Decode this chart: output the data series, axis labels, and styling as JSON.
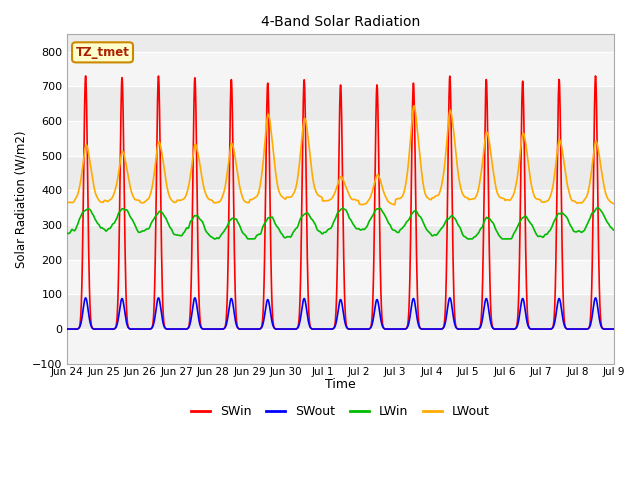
{
  "title": "4-Band Solar Radiation",
  "xlabel": "Time",
  "ylabel": "Solar Radiation (W/m2)",
  "ylim": [
    -100,
    850
  ],
  "yticks": [
    -100,
    0,
    100,
    200,
    300,
    400,
    500,
    600,
    700,
    800
  ],
  "xtick_labels": [
    "Jun 24",
    "Jun 25",
    "Jun 26",
    "Jun 27",
    "Jun 28",
    "Jun 29",
    "Jun 30",
    "Jul 1",
    "Jul 2",
    "Jul 3",
    "Jul 4",
    "Jul 5",
    "Jul 6",
    "Jul 7",
    "Jul 8",
    "Jul 9"
  ],
  "legend_labels": [
    "SWin",
    "SWout",
    "LWin",
    "LWout"
  ],
  "legend_colors": [
    "#ff0000",
    "#0000ff",
    "#00bb00",
    "#ffaa00"
  ],
  "annotation_text": "TZ_tmet",
  "annotation_color": "#aa2200",
  "annotation_bg": "#ffffcc",
  "annotation_border": "#cc8800",
  "grid_color": "#cccccc",
  "plot_bg": "#ebebeb",
  "LWin_color": "#00bb00",
  "LWout_color": "#ffaa00",
  "SWin_color": "#ff0000",
  "SWout_color": "#0000ff",
  "line_width": 1.2
}
